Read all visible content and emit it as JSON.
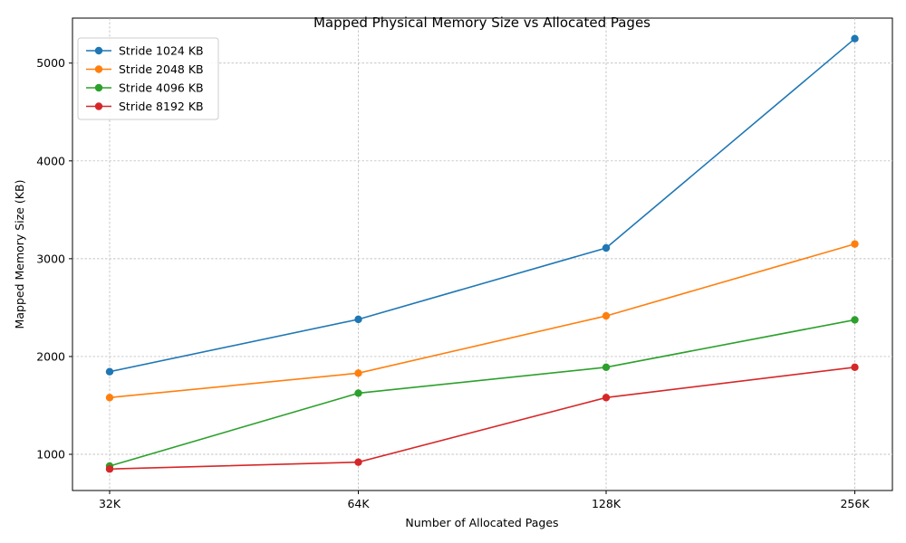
{
  "chart_data": {
    "type": "line",
    "title": "Mapped Physical Memory Size vs Allocated Pages",
    "xlabel": "Number of Allocated Pages",
    "ylabel": "Mapped Memory Size (KB)",
    "categories": [
      "32K",
      "64K",
      "128K",
      "256K"
    ],
    "ylim": [
      630,
      5460
    ],
    "yticks": [
      1000,
      2000,
      3000,
      4000,
      5000
    ],
    "grid": true,
    "legend_position": "top-left",
    "series": [
      {
        "name": "Stride 1024 KB",
        "color": "#1f77b4",
        "values": [
          1845,
          2380,
          3110,
          5250
        ]
      },
      {
        "name": "Stride 2048 KB",
        "color": "#ff7f0e",
        "values": [
          1580,
          1830,
          2415,
          3150
        ]
      },
      {
        "name": "Stride 4096 KB",
        "color": "#2ca02c",
        "values": [
          880,
          1625,
          1890,
          2375
        ]
      },
      {
        "name": "Stride 8192 KB",
        "color": "#d62728",
        "values": [
          850,
          920,
          1580,
          1890
        ]
      }
    ]
  }
}
